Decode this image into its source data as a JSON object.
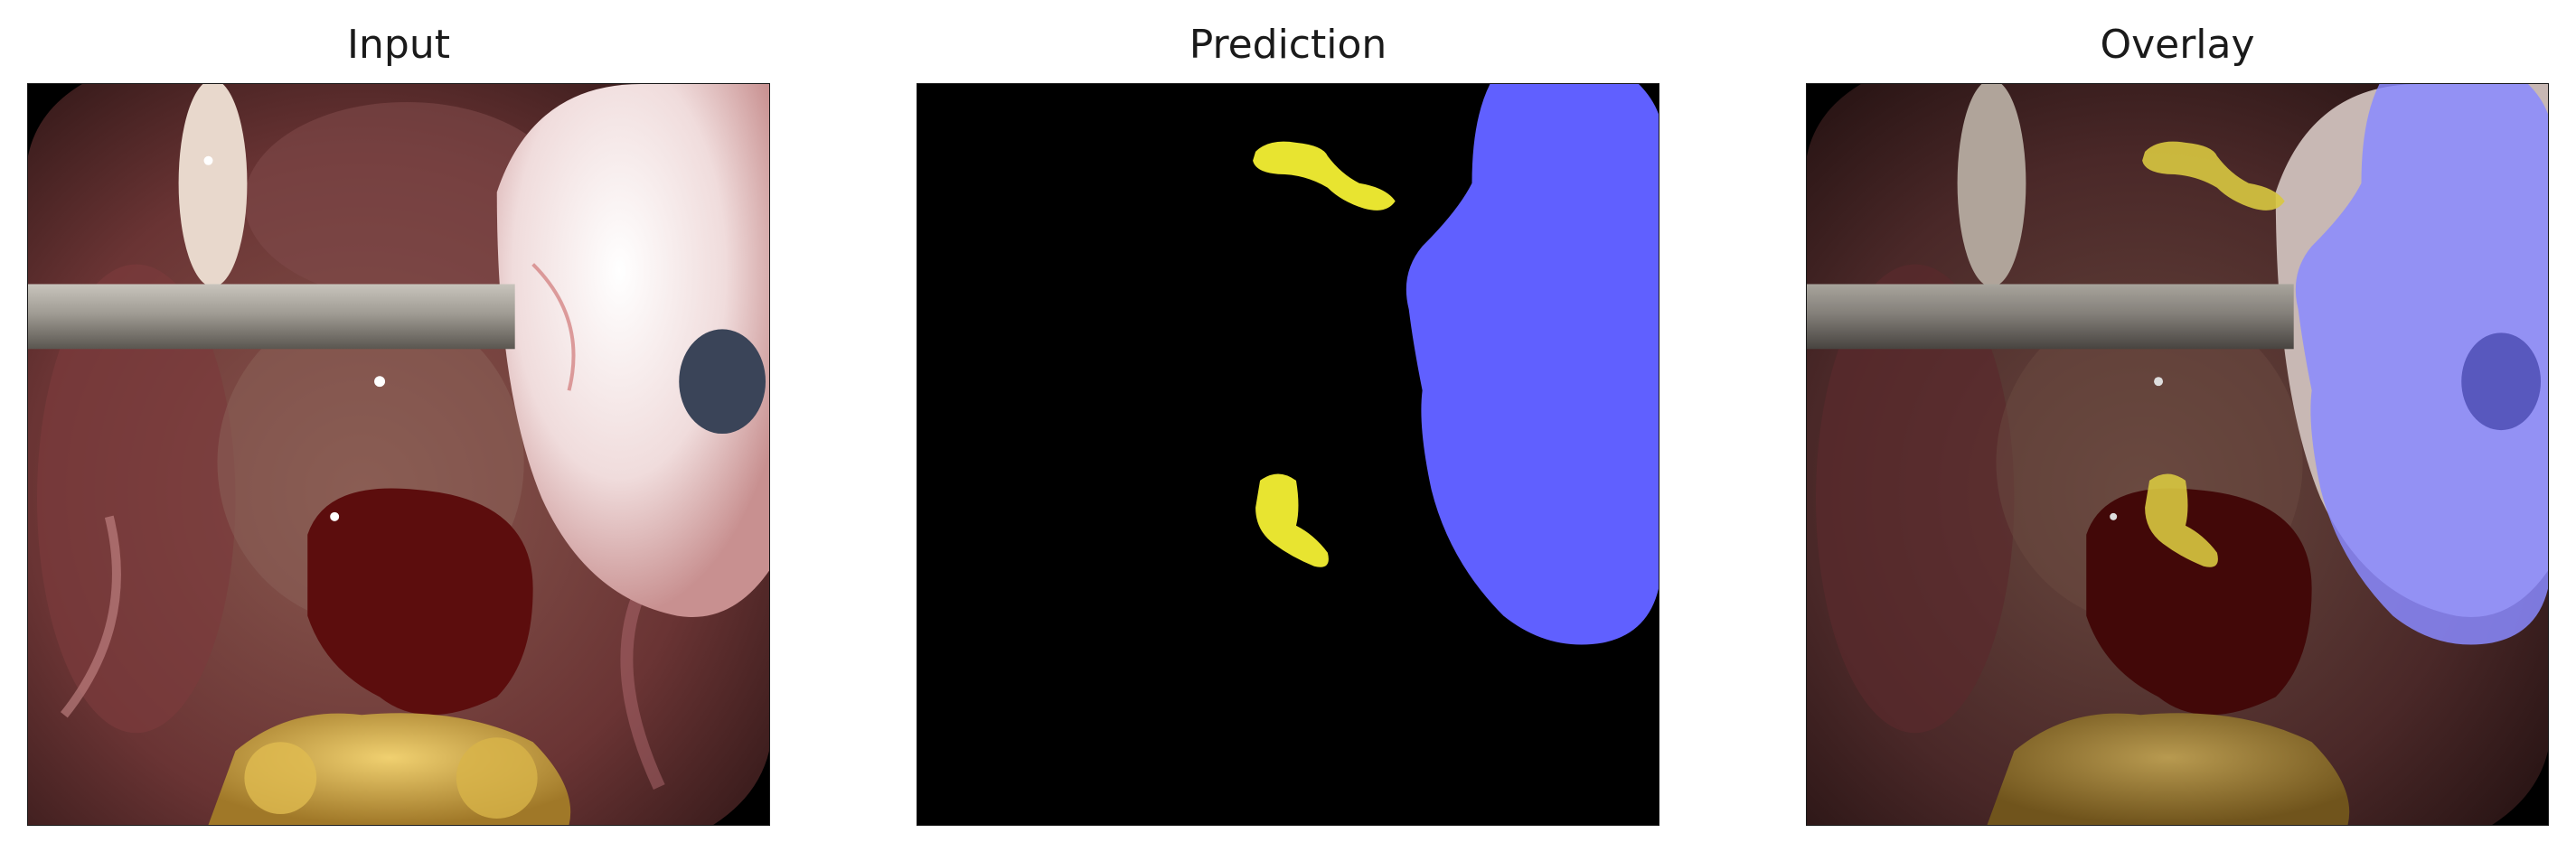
{
  "figure": {
    "panels": [
      {
        "title": "Input",
        "kind": "photo"
      },
      {
        "title": "Prediction",
        "kind": "mask"
      },
      {
        "title": "Overlay",
        "kind": "overlay"
      }
    ],
    "colors": {
      "background": "#ffffff",
      "mask_background": "#000000",
      "class_blue": "#6060ff",
      "class_yellow": "#e8e430",
      "tissue_dark": "#5a2a2a",
      "blood": "#5c0d0d",
      "instrument": "#9a968c",
      "fat": "#d8b040"
    }
  }
}
